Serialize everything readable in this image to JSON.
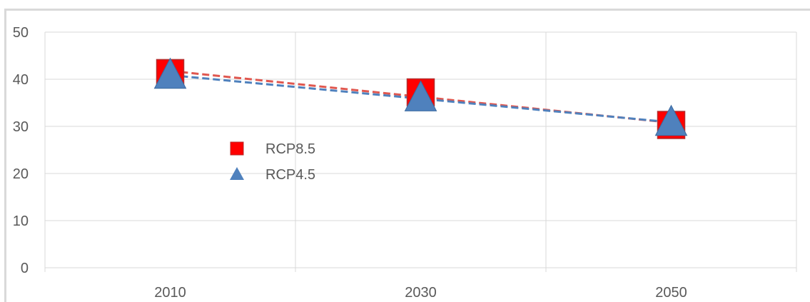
{
  "chart_data": {
    "type": "scatter",
    "title": "",
    "xlabel": "",
    "ylabel": "",
    "categories": [
      "2010",
      "2030",
      "2050"
    ],
    "ylim": [
      0,
      50
    ],
    "yticks": [
      "0",
      "10",
      "20",
      "30",
      "40",
      "50"
    ],
    "grid": true,
    "legend_position": "center-left",
    "series": [
      {
        "name": "RCP8.5",
        "marker": "square",
        "color": "#ff0000",
        "values": [
          41.3,
          37.2,
          30.3
        ],
        "trendline": true,
        "trend_color": "#e0574f"
      },
      {
        "name": "RCP4.5",
        "marker": "triangle",
        "color": "#4f81bd",
        "values": [
          40.8,
          36.0,
          30.8
        ],
        "trendline": true,
        "trend_color": "#4f81bd"
      }
    ]
  }
}
